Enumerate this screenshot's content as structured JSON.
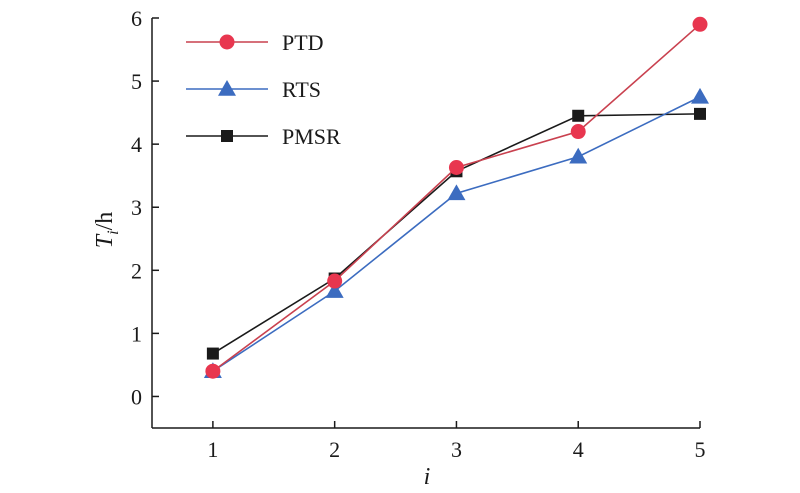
{
  "chart_data": {
    "type": "line",
    "title": "",
    "xlabel": "i",
    "ylabel_main": "T",
    "ylabel_sub": "i",
    "ylabel_unit": "/h",
    "x": [
      1,
      2,
      3,
      4,
      5
    ],
    "xlim": [
      0.5,
      5
    ],
    "ylim": [
      -0.5,
      6
    ],
    "xticks": [
      1,
      2,
      3,
      4,
      5
    ],
    "yticks": [
      0,
      1,
      2,
      3,
      4,
      5,
      6
    ],
    "grid": false,
    "legend_position": "top-left",
    "series": [
      {
        "name": "PTD",
        "values": [
          0.4,
          1.83,
          3.63,
          4.2,
          5.9
        ],
        "color": "#e8364f",
        "line_color": "#c9414f",
        "marker": "circle"
      },
      {
        "name": "RTS",
        "values": [
          0.4,
          1.67,
          3.22,
          3.8,
          4.75
        ],
        "color": "#3c6cc0",
        "line_color": "#3c6cc0",
        "marker": "triangle"
      },
      {
        "name": "PMSR",
        "values": [
          0.68,
          1.87,
          3.57,
          4.45,
          4.48
        ],
        "color": "#1a1a1a",
        "line_color": "#1a1a1a",
        "marker": "square"
      }
    ]
  }
}
